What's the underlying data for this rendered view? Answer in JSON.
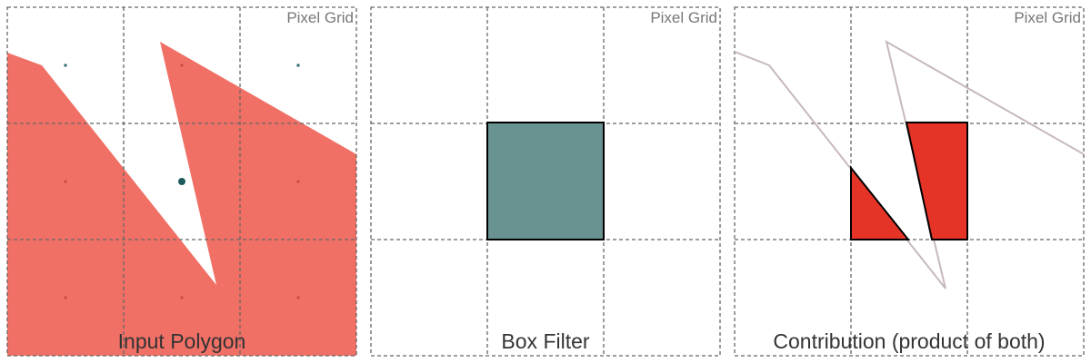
{
  "panels": [
    {
      "id": "input",
      "corner_label": "Pixel Grid",
      "title": "Input Polygon"
    },
    {
      "id": "filter",
      "corner_label": "Pixel Grid",
      "title": "Box Filter"
    },
    {
      "id": "contribution",
      "corner_label": "Pixel Grid",
      "title": "Contribution (product of both)"
    }
  ],
  "colors": {
    "polygon_fill": "#f07066",
    "sample_dot": "#cc4b3f",
    "sample_dot_teal": "#2b6a6a",
    "center_dot": "#1e5c5c",
    "filter_fill": "#689391",
    "contribution_fill": "#e53427",
    "polygon_outline": "#c7b9ba",
    "grid_line": "#666666"
  }
}
